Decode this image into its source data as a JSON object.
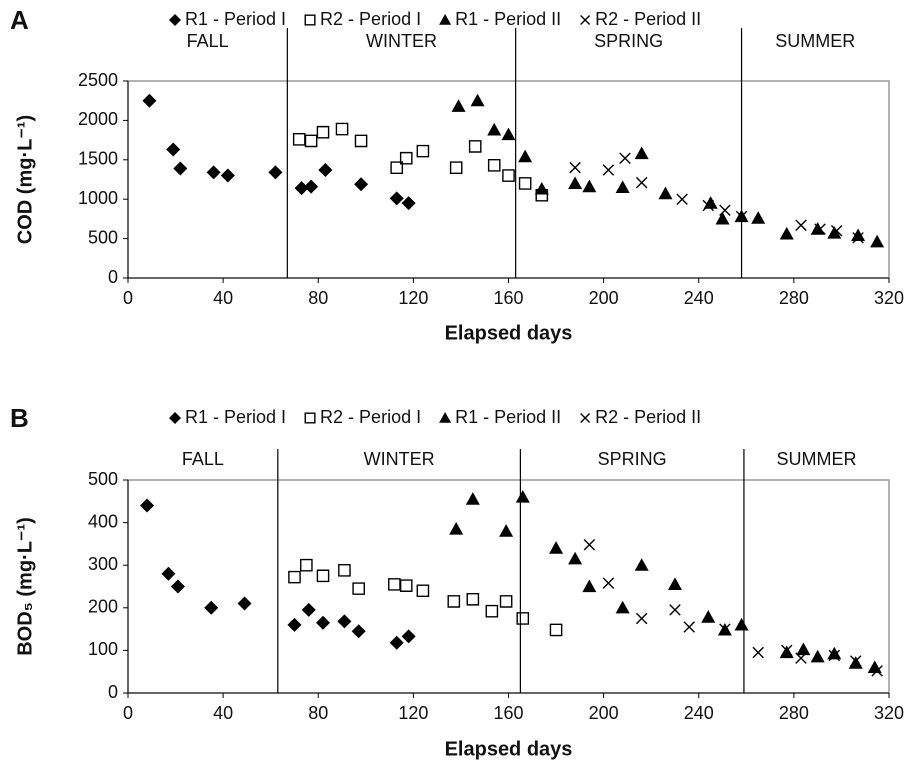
{
  "chart_data": [
    {
      "type": "scatter",
      "panel": "A",
      "xlabel": "Elapsed days",
      "ylabel": "COD (mg·L⁻¹)",
      "xlim": [
        0,
        320
      ],
      "xticks": [
        0,
        40,
        80,
        120,
        160,
        200,
        240,
        280,
        320
      ],
      "ylim": [
        0,
        2500
      ],
      "yticks": [
        0,
        500,
        1000,
        1500,
        2000,
        2500
      ],
      "grid": false,
      "seasons": [
        "FALL",
        "WINTER",
        "SPRING",
        "SUMMER"
      ],
      "season_bounds": [
        67,
        163,
        258
      ],
      "series": [
        {
          "name": "R1 - Period I",
          "marker": "diamond",
          "color": "#000000",
          "x": [
            9,
            19,
            22,
            36,
            42,
            62,
            73,
            77,
            83,
            98,
            113,
            118
          ],
          "values": [
            2250,
            1630,
            1390,
            1340,
            1300,
            1340,
            1140,
            1160,
            1370,
            1190,
            1010,
            950
          ]
        },
        {
          "name": "R2 - Period I",
          "marker": "square",
          "color": "#000000",
          "x": [
            72,
            77,
            82,
            90,
            98,
            113,
            117,
            124,
            138,
            146,
            154,
            160,
            167,
            174
          ],
          "values": [
            1760,
            1740,
            1850,
            1890,
            1740,
            1400,
            1520,
            1610,
            1400,
            1670,
            1430,
            1300,
            1200,
            1050
          ]
        },
        {
          "name": "R1 - Period II",
          "marker": "triangle",
          "color": "#000000",
          "x": [
            139,
            147,
            154,
            160,
            167,
            174,
            188,
            194,
            208,
            216,
            226,
            245,
            250,
            258,
            265,
            277,
            290,
            297,
            307,
            315
          ],
          "values": [
            2180,
            2250,
            1880,
            1820,
            1540,
            1130,
            1200,
            1160,
            1150,
            1580,
            1070,
            950,
            750,
            780,
            760,
            560,
            620,
            570,
            540,
            460
          ]
        },
        {
          "name": "R2 - Period II",
          "marker": "cross",
          "color": "#000000",
          "x": [
            188,
            202,
            209,
            216,
            233,
            244,
            251,
            258,
            283,
            291,
            298,
            307
          ],
          "values": [
            1400,
            1370,
            1520,
            1210,
            1000,
            920,
            860,
            780,
            670,
            620,
            600,
            510
          ]
        }
      ]
    },
    {
      "type": "scatter",
      "panel": "B",
      "xlabel": "Elapsed days",
      "ylabel": "BOD₅ (mg·L⁻¹)",
      "xlim": [
        0,
        320
      ],
      "xticks": [
        0,
        40,
        80,
        120,
        160,
        200,
        240,
        280,
        320
      ],
      "ylim": [
        0,
        500
      ],
      "yticks": [
        0,
        100,
        200,
        300,
        400,
        500
      ],
      "grid": false,
      "seasons": [
        "FALL",
        "WINTER",
        "SPRING",
        "SUMMER"
      ],
      "season_bounds": [
        63,
        165,
        259
      ],
      "series": [
        {
          "name": "R1 - Period I",
          "marker": "diamond",
          "color": "#000000",
          "x": [
            8,
            17,
            21,
            35,
            49,
            70,
            76,
            82,
            91,
            97,
            113,
            118
          ],
          "values": [
            440,
            280,
            250,
            200,
            210,
            160,
            195,
            165,
            168,
            145,
            118,
            133
          ]
        },
        {
          "name": "R2 - Period I",
          "marker": "square",
          "color": "#000000",
          "x": [
            70,
            75,
            82,
            91,
            97,
            112,
            117,
            124,
            137,
            145,
            153,
            159,
            166,
            180
          ],
          "values": [
            272,
            300,
            275,
            288,
            245,
            255,
            252,
            240,
            215,
            220,
            192,
            215,
            175,
            148
          ]
        },
        {
          "name": "R1 - Period II",
          "marker": "triangle",
          "color": "#000000",
          "x": [
            138,
            145,
            159,
            166,
            180,
            188,
            194,
            208,
            216,
            230,
            244,
            251,
            258,
            277,
            284,
            290,
            297,
            306,
            314
          ],
          "values": [
            385,
            455,
            380,
            460,
            340,
            315,
            250,
            200,
            300,
            255,
            178,
            148,
            160,
            95,
            102,
            85,
            92,
            70,
            60
          ]
        },
        {
          "name": "R2 - Period II",
          "marker": "cross",
          "color": "#000000",
          "x": [
            194,
            202,
            216,
            230,
            236,
            251,
            265,
            277,
            283,
            297,
            306,
            315
          ],
          "values": [
            348,
            258,
            175,
            195,
            155,
            150,
            95,
            100,
            82,
            88,
            75,
            52
          ]
        }
      ]
    }
  ]
}
